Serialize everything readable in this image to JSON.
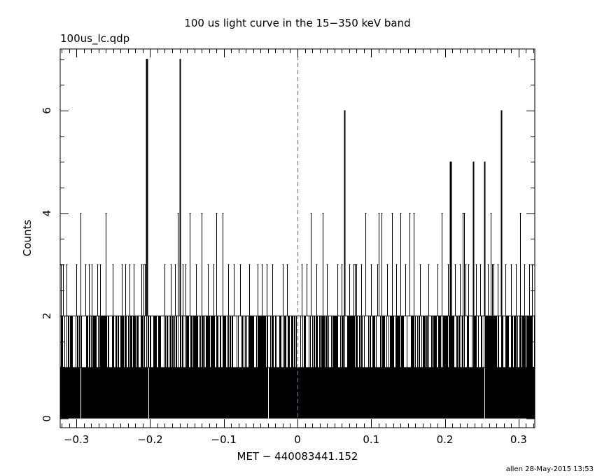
{
  "header": {
    "title": "100 us light curve in the 15−350 keV band",
    "file_label": "100us_lc.qdp",
    "footer": "allen 28-May-2015 13:53"
  },
  "chart_data": {
    "type": "bar",
    "title": "100 us light curve in the 15−350 keV band",
    "xlabel": "MET − 440083441.152",
    "ylabel": "Counts",
    "xlim": [
      -0.322,
      0.322
    ],
    "ylim": [
      -0.18,
      7.2
    ],
    "x_ticks": [
      -0.3,
      -0.2,
      -0.1,
      0,
      0.1,
      0.2,
      0.3
    ],
    "x_tick_labels": [
      "−0.3",
      "−0.2",
      "−0.1",
      "0",
      "0.1",
      "0.2",
      "0.3"
    ],
    "y_ticks": [
      0,
      2,
      4,
      6
    ],
    "y_tick_labels": [
      "0",
      "2",
      "4",
      "6"
    ],
    "bin_width": 0.0001,
    "reference_line": {
      "x": 0,
      "style": "dashed",
      "color": "#2a8fc9"
    },
    "series": [
      {
        "type": "bar",
        "points": [
          [
            -0.321,
            3
          ],
          [
            -0.318,
            3
          ],
          [
            -0.313,
            3
          ],
          [
            -0.3,
            3
          ],
          [
            -0.294,
            4
          ],
          [
            -0.288,
            3
          ],
          [
            -0.283,
            3
          ],
          [
            -0.279,
            3
          ],
          [
            -0.272,
            3
          ],
          [
            -0.268,
            3
          ],
          [
            -0.26,
            4
          ],
          [
            -0.251,
            3
          ],
          [
            -0.238,
            3
          ],
          [
            -0.234,
            3
          ],
          [
            -0.228,
            3
          ],
          [
            -0.222,
            3
          ],
          [
            -0.212,
            3
          ],
          [
            -0.209,
            3
          ],
          [
            -0.207,
            3
          ],
          [
            -0.205,
            7
          ],
          [
            -0.204,
            7
          ],
          [
            -0.18,
            3
          ],
          [
            -0.172,
            3
          ],
          [
            -0.166,
            3
          ],
          [
            -0.162,
            4
          ],
          [
            -0.16,
            7
          ],
          [
            -0.156,
            3
          ],
          [
            -0.152,
            3
          ],
          [
            -0.146,
            4
          ],
          [
            -0.138,
            3
          ],
          [
            -0.13,
            4
          ],
          [
            -0.122,
            3
          ],
          [
            -0.114,
            3
          ],
          [
            -0.11,
            4
          ],
          [
            -0.102,
            4
          ],
          [
            -0.094,
            3
          ],
          [
            -0.086,
            3
          ],
          [
            -0.078,
            3
          ],
          [
            -0.066,
            3
          ],
          [
            -0.054,
            3
          ],
          [
            -0.048,
            3
          ],
          [
            -0.042,
            3
          ],
          [
            -0.034,
            3
          ],
          [
            -0.02,
            3
          ],
          [
            -0.014,
            3
          ],
          [
            0.006,
            3
          ],
          [
            0.012,
            3
          ],
          [
            0.018,
            4
          ],
          [
            0.026,
            3
          ],
          [
            0.034,
            4
          ],
          [
            0.04,
            3
          ],
          [
            0.054,
            3
          ],
          [
            0.06,
            3
          ],
          [
            0.064,
            6
          ],
          [
            0.07,
            3
          ],
          [
            0.076,
            3
          ],
          [
            0.078,
            3
          ],
          [
            0.08,
            3
          ],
          [
            0.086,
            3
          ],
          [
            0.092,
            4
          ],
          [
            0.1,
            3
          ],
          [
            0.108,
            3
          ],
          [
            0.11,
            4
          ],
          [
            0.114,
            4
          ],
          [
            0.122,
            3
          ],
          [
            0.128,
            4
          ],
          [
            0.134,
            3
          ],
          [
            0.14,
            4
          ],
          [
            0.146,
            3
          ],
          [
            0.152,
            4
          ],
          [
            0.158,
            4
          ],
          [
            0.166,
            3
          ],
          [
            0.178,
            3
          ],
          [
            0.19,
            3
          ],
          [
            0.196,
            4
          ],
          [
            0.204,
            3
          ],
          [
            0.207,
            5
          ],
          [
            0.208,
            5
          ],
          [
            0.214,
            3
          ],
          [
            0.22,
            3
          ],
          [
            0.224,
            4
          ],
          [
            0.226,
            4
          ],
          [
            0.228,
            3
          ],
          [
            0.232,
            3
          ],
          [
            0.238,
            5
          ],
          [
            0.242,
            3
          ],
          [
            0.248,
            3
          ],
          [
            0.254,
            5
          ],
          [
            0.258,
            3
          ],
          [
            0.262,
            4
          ],
          [
            0.264,
            3
          ],
          [
            0.266,
            3
          ],
          [
            0.272,
            3
          ],
          [
            0.276,
            6
          ],
          [
            0.282,
            3
          ],
          [
            0.29,
            3
          ],
          [
            0.296,
            3
          ],
          [
            0.302,
            4
          ],
          [
            0.308,
            3
          ],
          [
            0.314,
            3
          ],
          [
            0.318,
            3
          ]
        ],
        "zero_points": [
          -0.294,
          -0.202,
          -0.04,
          0.254
        ]
      }
    ],
    "colors": {
      "bars": "#000000",
      "reference": "#2a8fc9",
      "frame": "#000000"
    },
    "grid": false
  }
}
